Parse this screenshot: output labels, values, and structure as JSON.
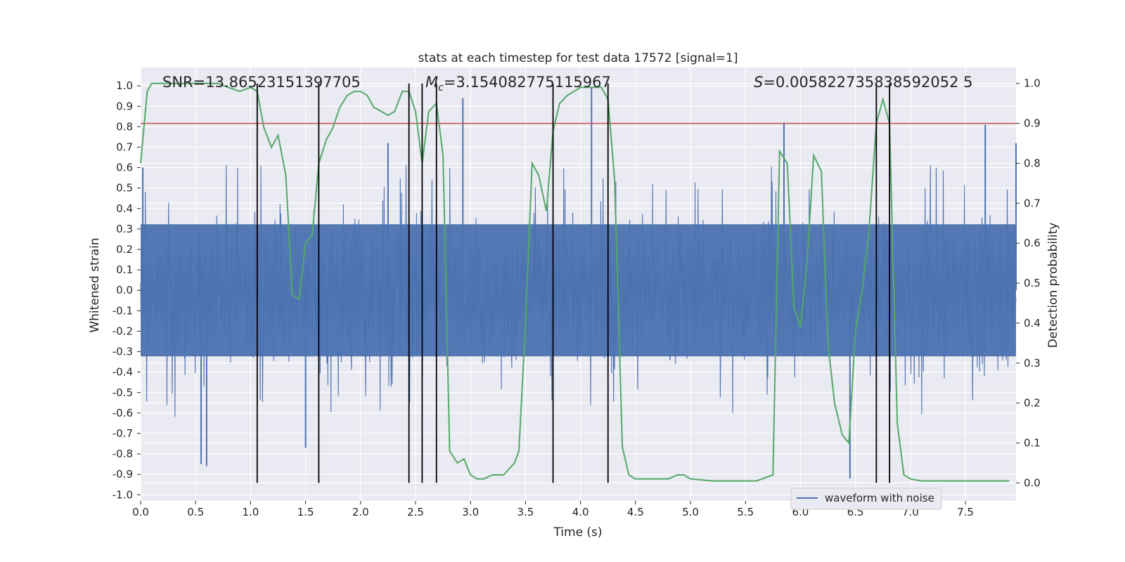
{
  "chart_data": {
    "type": "line",
    "title": "stats at each timestep for test data 17572 [signal=1]",
    "xlabel": "Time (s)",
    "ylabel": "Whitened strain",
    "y2label": "Detection probability",
    "xlim": [
      0.0,
      7.96
    ],
    "ylim": [
      -1.03,
      1.09
    ],
    "y2lim": [
      -0.045,
      1.04
    ],
    "xticks": [
      "0.0",
      "0.5",
      "1.0",
      "1.5",
      "2.0",
      "2.5",
      "3.0",
      "3.5",
      "4.0",
      "4.5",
      "5.0",
      "5.5",
      "6.0",
      "6.5",
      "7.0",
      "7.5"
    ],
    "yticks": [
      "1.0",
      "0.9",
      "0.8",
      "0.7",
      "0.6",
      "0.5",
      "0.4",
      "0.3",
      "0.2",
      "0.1",
      "0.0",
      "-0.1",
      "-0.2",
      "-0.3",
      "-0.4",
      "-0.5",
      "-0.6",
      "-0.7",
      "-0.8",
      "-0.9",
      "-1.0"
    ],
    "y2ticks": [
      "1.0",
      "0.9",
      "0.8",
      "0.7",
      "0.6",
      "0.5",
      "0.4",
      "0.3",
      "0.2",
      "0.1",
      "0.0"
    ],
    "grid": true,
    "legend": {
      "entries": [
        "waveform with noise"
      ],
      "placement": "lower-right"
    },
    "annotations": {
      "snr": "SNR=13.86523151397705",
      "mc_symbol": "M",
      "mc_sub": "c",
      "mc_value": "=3.154082775115967",
      "s_symbol": "S",
      "s_value": "=0.005822735838592052 5"
    },
    "threshold": {
      "y2": 0.9,
      "color": "#c44e52"
    },
    "vertical_lines": {
      "x": [
        1.06,
        1.62,
        2.44,
        2.56,
        2.69,
        3.75,
        4.25,
        6.69,
        6.81
      ],
      "y2_range": [
        0.0,
        1.0
      ],
      "color": "#000000"
    },
    "series": [
      {
        "name": "waveform with noise",
        "color": "#4c72b0",
        "axis": "left",
        "amplitude_envelope": {
          "core_half_range": 0.38,
          "typical_peak": 0.62,
          "peaks": [
            {
              "x": 0.02,
              "y": 0.6
            },
            {
              "x": 0.55,
              "y": -0.85
            },
            {
              "x": 0.6,
              "y": -0.86
            },
            {
              "x": 1.5,
              "y": -0.77
            },
            {
              "x": 2.25,
              "y": 0.72
            },
            {
              "x": 2.93,
              "y": 0.94
            },
            {
              "x": 4.1,
              "y": 0.99
            },
            {
              "x": 5.85,
              "y": 0.82
            },
            {
              "x": 6.45,
              "y": -0.92
            },
            {
              "x": 7.68,
              "y": 0.81
            },
            {
              "x": 7.96,
              "y": 0.72
            }
          ]
        }
      },
      {
        "name": "detection probability",
        "color": "#55a868",
        "axis": "right",
        "x": [
          0.0,
          0.06,
          0.1,
          0.2,
          0.3,
          0.4,
          0.5,
          0.6,
          0.7,
          0.8,
          0.9,
          1.0,
          1.06,
          1.12,
          1.19,
          1.25,
          1.32,
          1.38,
          1.44,
          1.5,
          1.56,
          1.62,
          1.69,
          1.75,
          1.81,
          1.88,
          1.94,
          2.0,
          2.06,
          2.12,
          2.19,
          2.25,
          2.31,
          2.38,
          2.44,
          2.5,
          2.56,
          2.62,
          2.69,
          2.75,
          2.81,
          2.88,
          2.94,
          3.0,
          3.06,
          3.12,
          3.2,
          3.3,
          3.4,
          3.44,
          3.5,
          3.56,
          3.62,
          3.69,
          3.75,
          3.81,
          3.88,
          3.94,
          4.0,
          4.06,
          4.12,
          4.19,
          4.25,
          4.31,
          4.38,
          4.44,
          4.5,
          4.6,
          4.7,
          4.8,
          4.88,
          4.94,
          5.0,
          5.2,
          5.4,
          5.6,
          5.75,
          5.81,
          5.88,
          5.94,
          6.0,
          6.06,
          6.12,
          6.19,
          6.25,
          6.31,
          6.38,
          6.44,
          6.5,
          6.56,
          6.62,
          6.69,
          6.75,
          6.81,
          6.88,
          6.94,
          7.0,
          7.1,
          7.3,
          7.5,
          7.7,
          7.9
        ],
        "y": [
          0.8,
          0.98,
          1.0,
          1.0,
          1.0,
          1.0,
          1.0,
          1.0,
          1.0,
          0.99,
          0.98,
          0.99,
          0.98,
          0.89,
          0.84,
          0.87,
          0.77,
          0.47,
          0.46,
          0.6,
          0.62,
          0.8,
          0.86,
          0.89,
          0.94,
          0.97,
          0.98,
          0.98,
          0.97,
          0.94,
          0.93,
          0.92,
          0.93,
          0.98,
          0.98,
          0.93,
          0.8,
          0.93,
          0.95,
          0.82,
          0.08,
          0.05,
          0.06,
          0.02,
          0.01,
          0.01,
          0.02,
          0.02,
          0.05,
          0.08,
          0.4,
          0.8,
          0.77,
          0.68,
          0.88,
          0.95,
          0.97,
          0.98,
          0.99,
          0.99,
          0.99,
          0.99,
          0.96,
          0.76,
          0.09,
          0.02,
          0.01,
          0.01,
          0.01,
          0.01,
          0.02,
          0.02,
          0.01,
          0.005,
          0.005,
          0.005,
          0.02,
          0.83,
          0.8,
          0.44,
          0.39,
          0.55,
          0.82,
          0.78,
          0.35,
          0.2,
          0.12,
          0.1,
          0.38,
          0.48,
          0.62,
          0.9,
          0.96,
          0.9,
          0.15,
          0.02,
          0.01,
          0.005,
          0.005,
          0.005,
          0.005,
          0.005
        ]
      }
    ]
  }
}
